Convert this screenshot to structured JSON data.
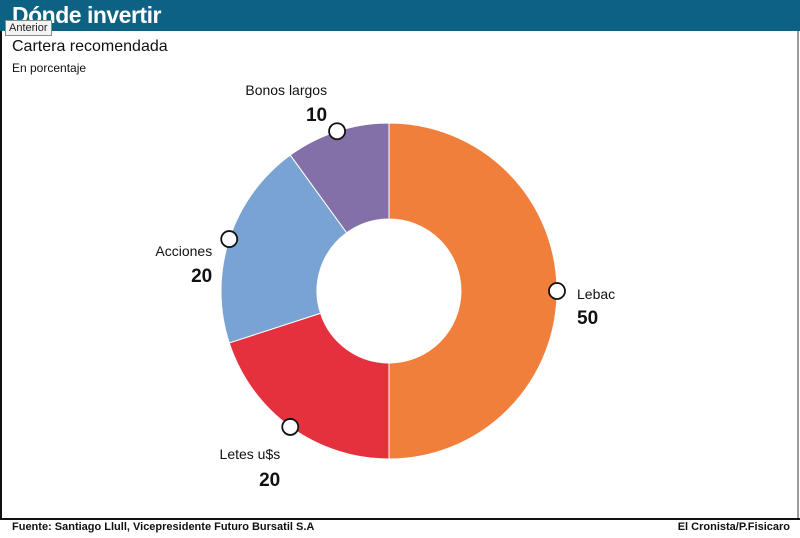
{
  "header": {
    "title": "Dónde invertir"
  },
  "nav": {
    "previous_label": "Anterior"
  },
  "chart_data": {
    "type": "pie",
    "title": "Cartera recomendada",
    "subtitle": "En porcentaje",
    "categories": [
      "Lebac",
      "Letes u$s",
      "Acciones",
      "Bonos largos"
    ],
    "values": [
      50,
      20,
      20,
      10
    ],
    "colors": [
      "#f07f3c",
      "#e5303e",
      "#78a3d2",
      "#8370a8"
    ],
    "donut": true,
    "start_angle_deg": 0,
    "direction": "clockwise"
  },
  "footer": {
    "source": "Fuente: Santiago Llull, Vicepresidente Futuro Bursatil S.A",
    "credit": "El Cronista/P.Fisicaro"
  }
}
